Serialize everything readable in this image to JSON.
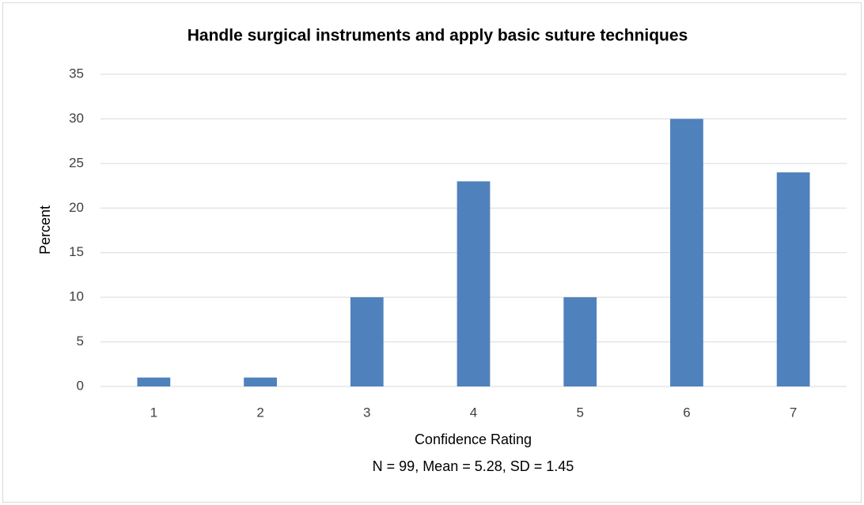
{
  "chart_data": {
    "type": "bar",
    "title": "Handle surgical instruments and apply basic suture techniques",
    "y_label": "Percent",
    "x_label": "Confidence Rating",
    "annotation": "N = 99, Mean = 5.28, SD = 1.45",
    "categories": [
      "1",
      "2",
      "3",
      "4",
      "5",
      "6",
      "7"
    ],
    "values": [
      1,
      1,
      10,
      23,
      10,
      30,
      24
    ],
    "color": "#4f81bd",
    "ylim": [
      0,
      35
    ],
    "yticks": [
      0,
      5,
      10,
      15,
      20,
      25,
      30,
      35
    ],
    "grid": true
  }
}
